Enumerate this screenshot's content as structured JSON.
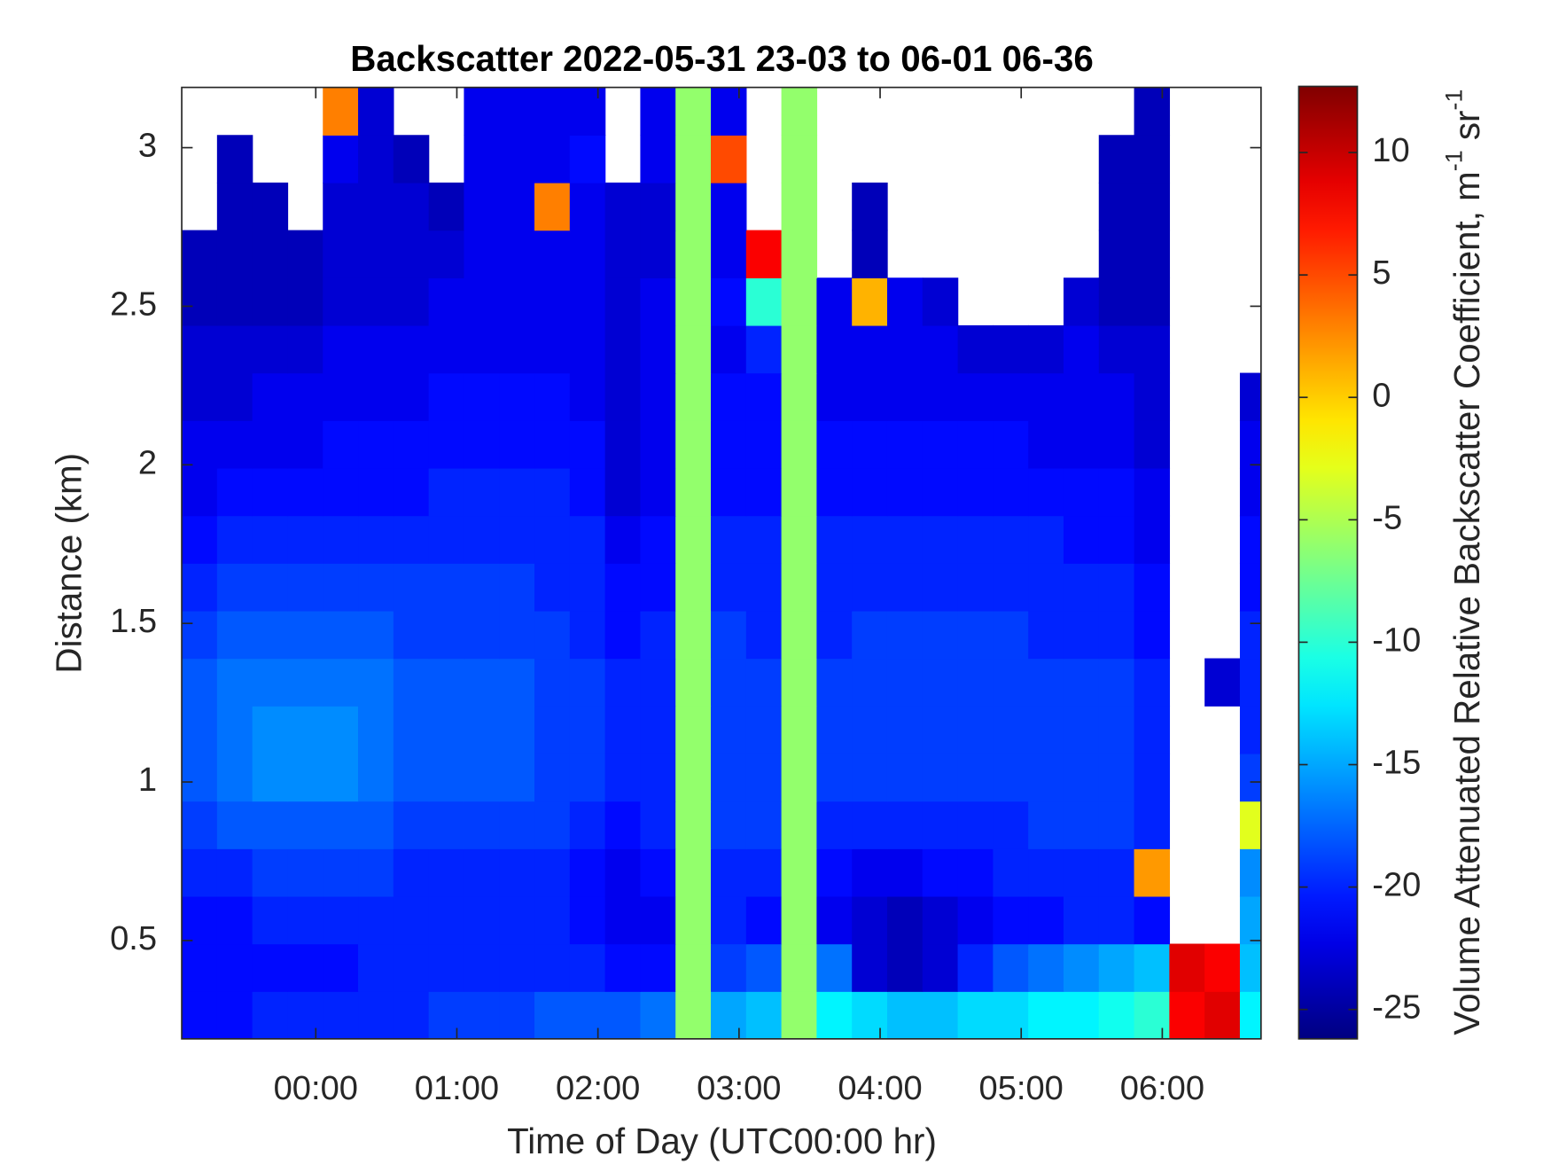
{
  "chart_data": {
    "type": "heatmap",
    "title": "Backscatter 2022-05-31 23-03 to 06-01 06-36",
    "x_label": "Time of Day (UTC00:00 hr)",
    "y_label": "Distance (km)",
    "colorbar_label": [
      "Volume Attenuated Relative Backscatter Coefficient, m",
      "-1",
      " sr",
      "-1"
    ],
    "colormap": "jet",
    "xlim": [
      -0.95,
      6.7
    ],
    "ylim": [
      0.19,
      3.19
    ],
    "clim": [
      -26.2,
      12.7
    ],
    "xticks": [
      {
        "value": 0,
        "label": "00:00"
      },
      {
        "value": 1,
        "label": "01:00"
      },
      {
        "value": 2,
        "label": "02:00"
      },
      {
        "value": 3,
        "label": "03:00"
      },
      {
        "value": 4,
        "label": "04:00"
      },
      {
        "value": 5,
        "label": "05:00"
      },
      {
        "value": 6,
        "label": "06:00"
      }
    ],
    "yticks": [
      0.5,
      1,
      1.5,
      2,
      2.5,
      3
    ],
    "cticks": [
      -25,
      -20,
      -15,
      -10,
      -5,
      0,
      5,
      10
    ],
    "x": [
      -0.825,
      -0.575,
      -0.325,
      -0.075,
      0.175,
      0.425,
      0.675,
      0.925,
      1.175,
      1.425,
      1.675,
      1.925,
      2.175,
      2.425,
      2.675,
      2.925,
      3.175,
      3.425,
      3.675,
      3.925,
      4.175,
      4.425,
      4.675,
      4.925,
      5.175,
      5.425,
      5.675,
      5.925,
      6.175,
      6.425,
      6.675
    ],
    "y": [
      0.265,
      0.415,
      0.565,
      0.715,
      0.865,
      1.015,
      1.165,
      1.315,
      1.465,
      1.615,
      1.765,
      1.915,
      2.065,
      2.215,
      2.365,
      2.515,
      2.665,
      2.815,
      2.965,
      3.115
    ],
    "z": [
      [
        -21,
        -21,
        -20,
        -20,
        -20,
        -20,
        -20,
        -19,
        -19,
        -19,
        -18,
        -18,
        -18,
        -17,
        -6,
        -15,
        -14,
        -6,
        -12,
        -13,
        -14,
        -14,
        -13,
        -13,
        -12,
        -12,
        -11,
        -10,
        8,
        9,
        -12
      ],
      [
        -21,
        -21,
        -21,
        -21,
        -21,
        -20,
        -20,
        -20,
        -20,
        -20,
        -20,
        -20,
        -21,
        -21,
        -6,
        -19,
        -18,
        -6,
        -17,
        -23,
        -24,
        -23,
        -20,
        -18,
        -17,
        -16,
        -15,
        -14,
        9,
        8,
        -14
      ],
      [
        -21,
        -21,
        -20,
        -20,
        -20,
        -20,
        -20,
        -20,
        -20,
        -20,
        -20,
        -21,
        -22,
        -22,
        -6,
        -20,
        -21,
        -6,
        -22,
        -23,
        -24,
        -23,
        -22,
        -21,
        -21,
        -20,
        -20,
        -21,
        null,
        null,
        -15
      ],
      [
        -20,
        -20,
        -19,
        -19,
        -19,
        -19,
        -20,
        -20,
        -20,
        -20,
        -20,
        -21,
        -22,
        -21,
        -6,
        -20,
        -20,
        -6,
        -21,
        -22,
        -22,
        -21,
        -21,
        -20,
        -20,
        -20,
        -20,
        2,
        null,
        null,
        -16
      ],
      [
        -19,
        -18,
        -18,
        -18,
        -18,
        -18,
        -19,
        -19,
        -19,
        -19,
        -19,
        -20,
        -21,
        -20,
        -6,
        -19,
        -19,
        -6,
        -20,
        -20,
        -20,
        -20,
        -20,
        -20,
        -19,
        -19,
        -19,
        -20,
        null,
        null,
        -3
      ],
      [
        -18,
        -17,
        -16,
        -16,
        -16,
        -17,
        -18,
        -18,
        -18,
        -18,
        -19,
        -19,
        -20,
        -20,
        -6,
        -19,
        -19,
        -6,
        -19,
        -19,
        -19,
        -19,
        -19,
        -19,
        -19,
        -19,
        -19,
        -20,
        null,
        null,
        -19
      ],
      [
        -18,
        -17,
        -16,
        -16,
        -16,
        -17,
        -18,
        -18,
        -18,
        -18,
        -19,
        -19,
        -20,
        -20,
        -6,
        -19,
        -19,
        -6,
        -19,
        -19,
        -19,
        -19,
        -19,
        -19,
        -19,
        -19,
        -19,
        -20,
        null,
        null,
        -20
      ],
      [
        -18,
        -17,
        -17,
        -17,
        -17,
        -17,
        -18,
        -18,
        -18,
        -18,
        -19,
        -19,
        -20,
        -20,
        -6,
        -19,
        -19,
        -6,
        -19,
        -19,
        -19,
        -19,
        -19,
        -19,
        -19,
        -19,
        -19,
        -20,
        null,
        -23,
        -20
      ],
      [
        -19,
        -18,
        -18,
        -18,
        -18,
        -18,
        -19,
        -19,
        -19,
        -19,
        -19,
        -20,
        -21,
        -20,
        -6,
        -19,
        -20,
        -6,
        -20,
        -19,
        -19,
        -19,
        -19,
        -19,
        -20,
        -20,
        -20,
        -21,
        null,
        null,
        -20
      ],
      [
        -20,
        -19,
        -19,
        -19,
        -19,
        -19,
        -19,
        -19,
        -19,
        -19,
        -20,
        -20,
        -21,
        -21,
        -6,
        -20,
        -20,
        -6,
        -20,
        -20,
        -20,
        -20,
        -20,
        -20,
        -20,
        -20,
        -20,
        -21,
        null,
        null,
        -21
      ],
      [
        -21,
        -20,
        -20,
        -20,
        -20,
        -20,
        -20,
        -20,
        -20,
        -20,
        -20,
        -20,
        -22,
        -21,
        -6,
        -20,
        -20,
        -6,
        -20,
        -20,
        -20,
        -20,
        -20,
        -20,
        -20,
        -21,
        -21,
        -22,
        null,
        null,
        -21
      ],
      [
        -22,
        -21,
        -21,
        -21,
        -21,
        -21,
        -21,
        -20,
        -20,
        -20,
        -20,
        -21,
        -23,
        -22,
        -6,
        -21,
        -21,
        -6,
        -21,
        -21,
        -21,
        -21,
        -21,
        -21,
        -21,
        -21,
        -21,
        -22,
        null,
        null,
        -22
      ],
      [
        -22,
        -22,
        -22,
        -22,
        -21,
        -21,
        -21,
        -21,
        -21,
        -21,
        -21,
        -21,
        -23,
        -22,
        -6,
        -21,
        -21,
        -6,
        -21,
        -21,
        -21,
        -21,
        -21,
        -21,
        -22,
        -22,
        -22,
        -23,
        null,
        null,
        -22
      ],
      [
        -23,
        -23,
        -22,
        -22,
        -22,
        -22,
        -22,
        -21,
        -21,
        -21,
        -21,
        -22,
        -23,
        -22,
        -6,
        -21,
        -21,
        -6,
        -22,
        -22,
        -22,
        -22,
        -22,
        -22,
        -22,
        -22,
        -22,
        -23,
        null,
        null,
        -23
      ],
      [
        -23,
        -23,
        -23,
        -23,
        -22,
        -22,
        -22,
        -22,
        -22,
        -22,
        -22,
        -22,
        -23,
        -22,
        -6,
        -22,
        -20,
        -6,
        -22,
        -22,
        -22,
        -22,
        -23,
        -23,
        -23,
        -22,
        -23,
        -23,
        null,
        null,
        null
      ],
      [
        -24,
        -24,
        -24,
        -24,
        -23,
        -23,
        -23,
        -22,
        -22,
        -22,
        -22,
        -22,
        -23,
        -22,
        -6,
        -21,
        -10,
        -6,
        -22,
        1,
        -22,
        -23,
        null,
        null,
        null,
        -23,
        -24,
        -24,
        null,
        null,
        null
      ],
      [
        -24,
        -24,
        -24,
        -24,
        -23,
        -23,
        -23,
        -23,
        -22,
        -22,
        -22,
        -22,
        -23,
        -23,
        -6,
        -22,
        8,
        -6,
        null,
        -24,
        null,
        null,
        null,
        null,
        null,
        null,
        -24,
        -24,
        null,
        null,
        null
      ],
      [
        null,
        -24,
        -24,
        null,
        -23,
        -23,
        -23,
        -24,
        -22,
        -22,
        3,
        -22,
        -23,
        -23,
        -6,
        -22,
        null,
        -6,
        null,
        -24,
        null,
        null,
        null,
        null,
        null,
        null,
        -24,
        -24,
        null,
        null,
        null
      ],
      [
        null,
        -24,
        null,
        null,
        -22,
        -23,
        -24,
        null,
        -22,
        -22,
        -22,
        -21,
        null,
        -22,
        -6,
        5,
        null,
        -6,
        null,
        null,
        null,
        null,
        null,
        null,
        null,
        null,
        -24,
        -24,
        null,
        null,
        null
      ],
      [
        null,
        null,
        null,
        null,
        3,
        -23,
        null,
        null,
        -22,
        -22,
        -22,
        -22,
        null,
        -22,
        -6,
        -22,
        null,
        -6,
        null,
        null,
        null,
        null,
        null,
        null,
        null,
        null,
        null,
        -24,
        null,
        null,
        null
      ]
    ]
  }
}
